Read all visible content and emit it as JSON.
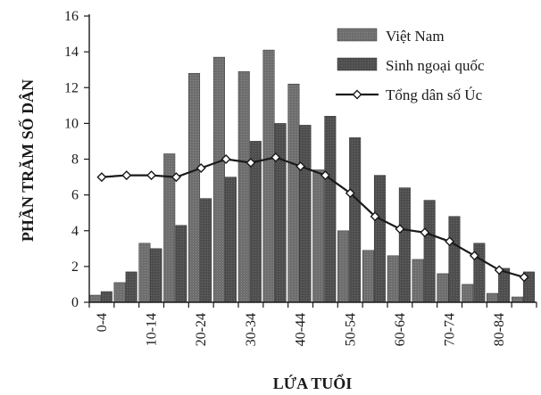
{
  "chart_data": {
    "type": "bar",
    "xlabel": "LỨA TUỔI",
    "ylabel": "PHẦN TRĂM SỐ DÂN",
    "ylim": [
      0,
      16
    ],
    "yticks": [
      0,
      2,
      4,
      6,
      8,
      10,
      12,
      14,
      16
    ],
    "categories": [
      "0-4",
      "5-9",
      "10-14",
      "15-19",
      "20-24",
      "25-29",
      "30-34",
      "35-39",
      "40-44",
      "45-49",
      "50-54",
      "55-59",
      "60-64",
      "65-69",
      "70-74",
      "75-79",
      "80-84",
      "85+"
    ],
    "category_labels": [
      "0-4",
      "",
      "10-14",
      "",
      "20-24",
      "",
      "30-34",
      "",
      "40-44",
      "",
      "50-54",
      "",
      "60-64",
      "",
      "70-74",
      "",
      "80-84",
      ""
    ],
    "grid": false,
    "legend_position": "top-right",
    "series": [
      {
        "name": "Việt Nam",
        "kind": "bar",
        "color": "#6e6e6e",
        "values": [
          0.4,
          1.1,
          3.3,
          8.3,
          12.8,
          13.7,
          12.9,
          14.1,
          12.2,
          7.4,
          4.0,
          2.9,
          2.6,
          2.4,
          1.6,
          1.0,
          0.5,
          0.3
        ]
      },
      {
        "name": "Sinh ngoại quốc",
        "kind": "bar",
        "color": "#505050",
        "values": [
          0.6,
          1.7,
          3.0,
          4.3,
          5.8,
          7.0,
          9.0,
          10.0,
          9.9,
          10.4,
          9.2,
          7.1,
          6.4,
          5.7,
          4.8,
          3.3,
          1.9,
          1.7
        ]
      },
      {
        "name": "Tổng dân số Úc",
        "kind": "line",
        "color": "#1a1a1a",
        "values": [
          7.0,
          7.1,
          7.1,
          7.0,
          7.5,
          8.0,
          7.8,
          8.1,
          7.6,
          7.1,
          6.1,
          4.8,
          4.1,
          3.9,
          3.4,
          2.6,
          1.8,
          1.4
        ]
      }
    ]
  }
}
